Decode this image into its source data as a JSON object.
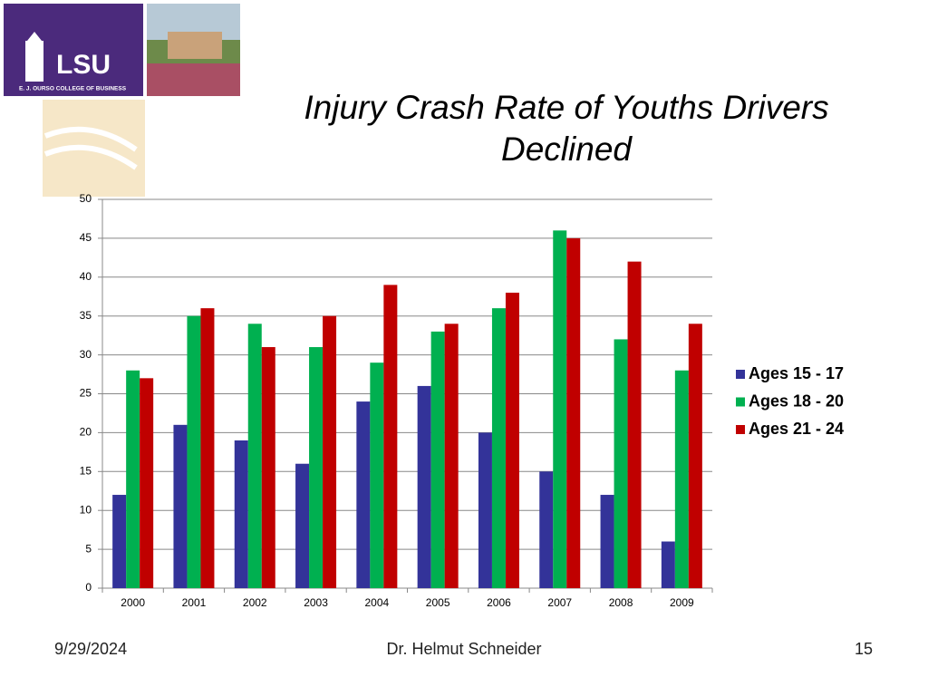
{
  "logo": {
    "name": "LSU",
    "subtitle": "E. J. OURSO COLLEGE OF BUSINESS"
  },
  "chart_data": {
    "type": "bar",
    "title": "Injury Crash Rate of Youths Drivers Declined",
    "categories": [
      "2000",
      "2001",
      "2002",
      "2003",
      "2004",
      "2005",
      "2006",
      "2007",
      "2008",
      "2009"
    ],
    "series": [
      {
        "name": "Ages 15 - 17",
        "color": "#333399",
        "values": [
          12,
          21,
          19,
          16,
          24,
          26,
          20,
          15,
          12,
          6
        ]
      },
      {
        "name": "Ages 18 - 20",
        "color": "#00b050",
        "values": [
          28,
          35,
          34,
          31,
          29,
          33,
          36,
          46,
          32,
          28
        ]
      },
      {
        "name": "Ages 21 - 24",
        "color": "#c00000",
        "values": [
          27,
          36,
          31,
          35,
          39,
          34,
          38,
          45,
          42,
          34
        ]
      }
    ],
    "ylim": [
      0,
      50
    ],
    "yticks": [
      0,
      5,
      10,
      15,
      20,
      25,
      30,
      35,
      40,
      45,
      50
    ],
    "grid": true,
    "legend": "right"
  },
  "footer": {
    "date": "9/29/2024",
    "author": "Dr. Helmut Schneider",
    "page": "15"
  }
}
